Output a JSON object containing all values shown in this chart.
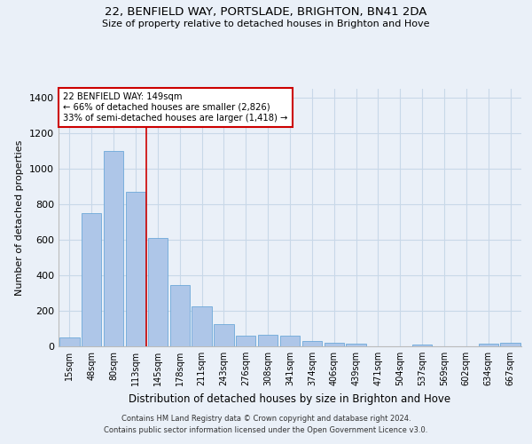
{
  "title1": "22, BENFIELD WAY, PORTSLADE, BRIGHTON, BN41 2DA",
  "title2": "Size of property relative to detached houses in Brighton and Hove",
  "xlabel": "Distribution of detached houses by size in Brighton and Hove",
  "ylabel": "Number of detached properties",
  "footnote1": "Contains HM Land Registry data © Crown copyright and database right 2024.",
  "footnote2": "Contains public sector information licensed under the Open Government Licence v3.0.",
  "bar_color": "#aec6e8",
  "bar_edge_color": "#5a9fd4",
  "grid_color": "#c8d8e8",
  "background_color": "#eaf0f8",
  "annotation_box_color": "#cc0000",
  "property_size": 149,
  "pct_smaller": 66,
  "n_smaller": 2826,
  "pct_larger_semi": 33,
  "n_larger_semi": 1418,
  "red_line_index": 3.5,
  "categories": [
    "15sqm",
    "48sqm",
    "80sqm",
    "113sqm",
    "145sqm",
    "178sqm",
    "211sqm",
    "243sqm",
    "276sqm",
    "308sqm",
    "341sqm",
    "374sqm",
    "406sqm",
    "439sqm",
    "471sqm",
    "504sqm",
    "537sqm",
    "569sqm",
    "602sqm",
    "634sqm",
    "667sqm"
  ],
  "values": [
    50,
    750,
    1100,
    870,
    610,
    345,
    225,
    125,
    60,
    65,
    60,
    30,
    20,
    15,
    0,
    0,
    10,
    0,
    0,
    15,
    20
  ],
  "ylim": [
    0,
    1450
  ],
  "yticks": [
    0,
    200,
    400,
    600,
    800,
    1000,
    1200,
    1400
  ]
}
